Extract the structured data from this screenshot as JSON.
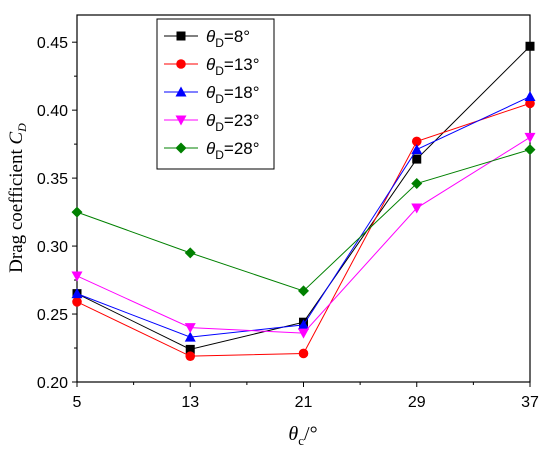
{
  "chart_data": {
    "type": "line",
    "x": [
      5,
      13,
      21,
      29,
      37
    ],
    "xlim": [
      5,
      37
    ],
    "ylim": [
      0.2,
      0.47
    ],
    "x_ticks": [
      "5",
      "13",
      "21",
      "29",
      "37"
    ],
    "y_ticks": [
      "0.20",
      "0.25",
      "0.30",
      "0.35",
      "0.40",
      "0.45"
    ],
    "xlabel": {
      "main": "θ",
      "sub": "c",
      "suffix": "/°"
    },
    "ylabel": {
      "main": "Drag coefficient ",
      "var": "C",
      "sub": "D"
    },
    "legend_position": "top-left",
    "grid": false,
    "series": [
      {
        "name": "θD=8°",
        "label": {
          "main": "θ",
          "sub": "D",
          "suffix": "=8°"
        },
        "color": "#000000",
        "marker": "square",
        "values": [
          0.265,
          0.224,
          0.244,
          0.364,
          0.447
        ]
      },
      {
        "name": "θD=13°",
        "label": {
          "main": "θ",
          "sub": "D",
          "suffix": "=13°"
        },
        "color": "#ff0000",
        "marker": "circle",
        "values": [
          0.259,
          0.219,
          0.221,
          0.377,
          0.405
        ]
      },
      {
        "name": "θD=18°",
        "label": {
          "main": "θ",
          "sub": "D",
          "suffix": "=18°"
        },
        "color": "#0000ff",
        "marker": "triangle-up",
        "values": [
          0.265,
          0.233,
          0.242,
          0.371,
          0.41
        ]
      },
      {
        "name": "θD=23°",
        "label": {
          "main": "θ",
          "sub": "D",
          "suffix": "=23°"
        },
        "color": "#ff00ff",
        "marker": "triangle-down",
        "values": [
          0.278,
          0.24,
          0.236,
          0.328,
          0.38
        ]
      },
      {
        "name": "θD=28°",
        "label": {
          "main": "θ",
          "sub": "D",
          "suffix": "=28°"
        },
        "color": "#008000",
        "marker": "diamond",
        "values": [
          0.325,
          0.295,
          0.267,
          0.346,
          0.371
        ]
      }
    ]
  }
}
